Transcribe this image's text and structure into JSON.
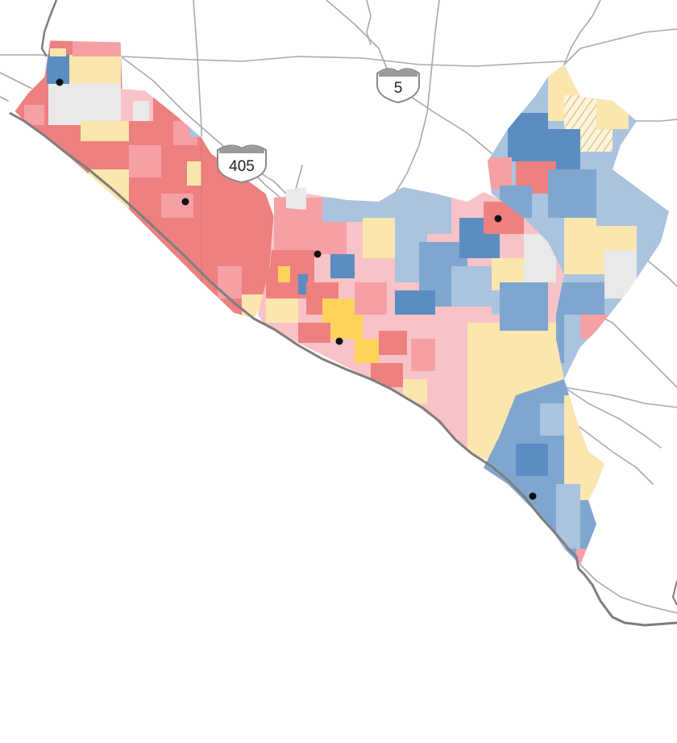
{
  "colors": {
    "background": "#ffffff",
    "red_strong": "#ef8080",
    "red_medium": "#f4a0a4",
    "red_light": "#f8c3c6",
    "blue_strong": "#5b8dc2",
    "blue_medium": "#7fa6cf",
    "blue_light": "#aac3df",
    "yellow_light": "#fbe6ad",
    "yellow_strong": "#fdd35c",
    "gray_no_data": "#e9e9e9",
    "road": "#a9a9a9",
    "coast": "#8a8a8a",
    "highway_shield": "#ffffff",
    "highway_shield_stroke": "#8a8a8a",
    "highway_shield_band": "#9a9a9a",
    "city_dot": "#111111"
  },
  "highways": [
    {
      "label": "5",
      "icon": "interstate-shield-icon"
    },
    {
      "label": "405",
      "icon": "interstate-shield-icon"
    }
  ],
  "city_markers_icon": "city-dot-icon",
  "hatched_area_icon": "hatched-pattern-icon"
}
